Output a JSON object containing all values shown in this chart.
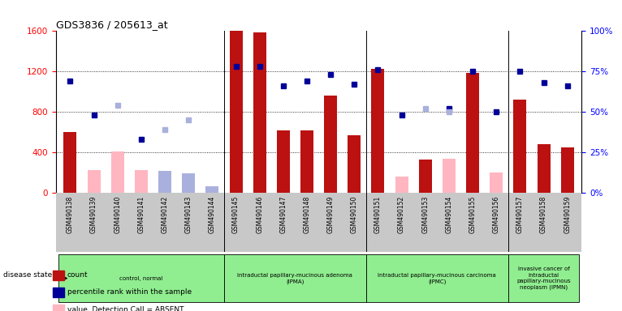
{
  "title": "GDS3836 / 205613_at",
  "samples": [
    "GSM490138",
    "GSM490139",
    "GSM490140",
    "GSM490141",
    "GSM490142",
    "GSM490143",
    "GSM490144",
    "GSM490145",
    "GSM490146",
    "GSM490147",
    "GSM490148",
    "GSM490149",
    "GSM490150",
    "GSM490151",
    "GSM490152",
    "GSM490153",
    "GSM490154",
    "GSM490155",
    "GSM490156",
    "GSM490157",
    "GSM490158",
    "GSM490159"
  ],
  "count_values": [
    600,
    0,
    0,
    0,
    0,
    0,
    50,
    1600,
    1590,
    620,
    620,
    960,
    570,
    1230,
    0,
    330,
    0,
    1190,
    0,
    920,
    480,
    450
  ],
  "count_absent": [
    0,
    230,
    410,
    230,
    0,
    165,
    0,
    0,
    0,
    0,
    0,
    0,
    0,
    0,
    165,
    0,
    335,
    0,
    200,
    0,
    0,
    0
  ],
  "percentile_present": [
    69,
    48,
    null,
    33,
    null,
    null,
    null,
    78,
    78,
    66,
    69,
    73,
    67,
    76,
    48,
    null,
    52,
    75,
    50,
    75,
    68,
    66
  ],
  "percentile_absent": [
    null,
    null,
    54,
    null,
    39,
    45,
    null,
    null,
    null,
    null,
    null,
    null,
    null,
    null,
    null,
    52,
    50,
    null,
    null,
    null,
    null,
    null
  ],
  "rank_absent_left": [
    null,
    null,
    null,
    null,
    220,
    195,
    65,
    null,
    null,
    null,
    null,
    null,
    null,
    null,
    null,
    null,
    null,
    null,
    null,
    null,
    null,
    null
  ],
  "groups": [
    {
      "label": "control, normal",
      "start": 0,
      "end": 7
    },
    {
      "label": "intraductal papillary-mucinous adenoma\n(IPMA)",
      "start": 7,
      "end": 13
    },
    {
      "label": "intraductal papillary-mucinous carcinoma\n(IPMC)",
      "start": 13,
      "end": 19
    },
    {
      "label": "invasive cancer of\nintraductal\npapillary-mucinous\nneoplasm (IPMN)",
      "start": 19,
      "end": 22
    }
  ],
  "ylim_left": [
    0,
    1600
  ],
  "ylim_right": [
    0,
    100
  ],
  "yticks_left": [
    0,
    400,
    800,
    1200,
    1600
  ],
  "yticks_right": [
    0,
    25,
    50,
    75,
    100
  ],
  "ytick_labels_left": [
    "0",
    "400",
    "800",
    "1200",
    "1600"
  ],
  "ytick_labels_right": [
    "0%",
    "25%",
    "50%",
    "75%",
    "100%"
  ],
  "bar_color": "#bb1111",
  "absent_bar_color": "#ffb6c1",
  "dot_present_color": "#000099",
  "dot_absent_color": "#aab0dd",
  "group_color": "#90ee90",
  "tick_bg_color": "#c8c8c8",
  "background_color": "#ffffff"
}
